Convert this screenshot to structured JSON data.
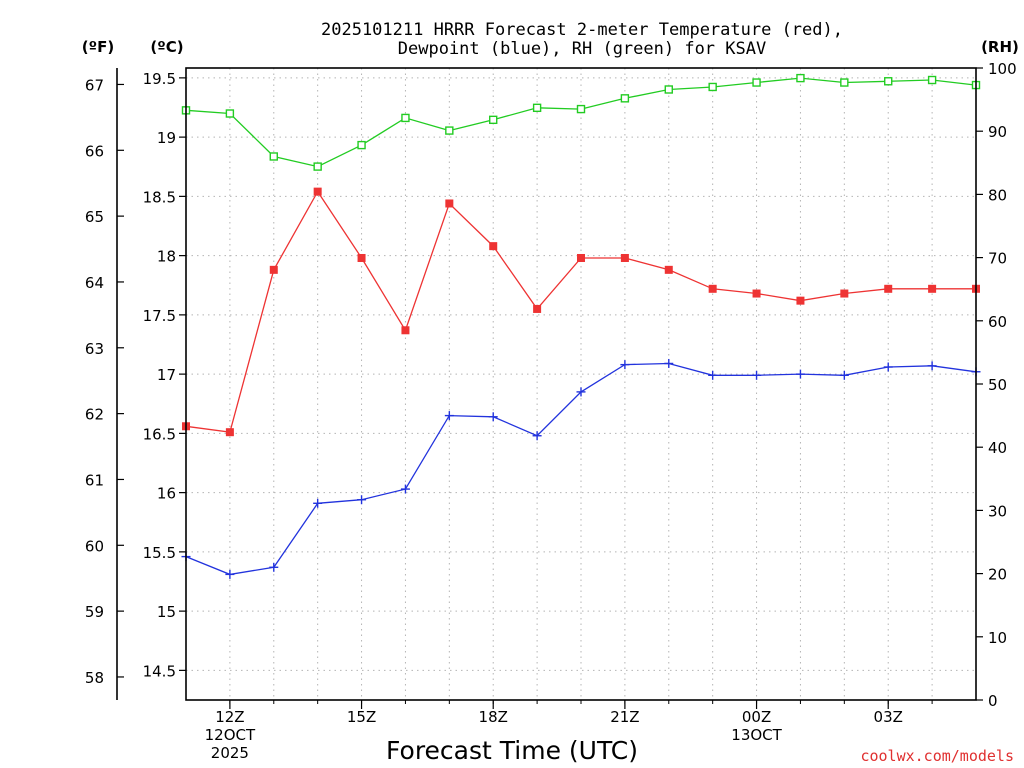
{
  "chart_data": {
    "type": "line",
    "title_lines": [
      "2025101211 HRRR Forecast 2-meter Temperature (red),",
      "Dewpoint (blue), RH (green) for KSAV"
    ],
    "unit_labels": {
      "fahrenheit": "(ºF)",
      "celsius": "(ºC)",
      "rh": "(RH)"
    },
    "xlabel": "Forecast Time (UTC)",
    "credit": "coolwx.com/models",
    "x_range": [
      -1,
      17
    ],
    "celsius_range": [
      14.25,
      19.5833
    ],
    "rh_range": [
      0,
      100
    ],
    "x_ticks": [
      {
        "x": 0,
        "lines": [
          "12Z",
          "12OCT",
          "2025"
        ]
      },
      {
        "x": 3,
        "lines": [
          "15Z"
        ]
      },
      {
        "x": 6,
        "lines": [
          "18Z"
        ]
      },
      {
        "x": 9,
        "lines": [
          "21Z"
        ]
      },
      {
        "x": 12,
        "lines": [
          "00Z",
          "13OCT"
        ]
      },
      {
        "x": 15,
        "lines": [
          "03Z"
        ]
      }
    ],
    "celsius_ticks": [
      14.5,
      15,
      15.5,
      16,
      16.5,
      17,
      17.5,
      18,
      18.5,
      19,
      19.5
    ],
    "celsius_tick_labels": [
      "14.5",
      "15",
      "15.5",
      "16",
      "16.5",
      "17",
      "17.5",
      "18",
      "18.5",
      "19",
      "19.5"
    ],
    "fahrenheit_ticks": [
      58,
      59,
      60,
      61,
      62,
      63,
      64,
      65,
      66,
      67
    ],
    "fahrenheit_tick_labels": [
      "58",
      "59",
      "60",
      "61",
      "62",
      "63",
      "64",
      "65",
      "66",
      "67"
    ],
    "rh_ticks": [
      0,
      10,
      20,
      30,
      40,
      50,
      60,
      70,
      80,
      90,
      100
    ],
    "rh_tick_labels": [
      "0",
      "10",
      "20",
      "30",
      "40",
      "50",
      "60",
      "70",
      "80",
      "90",
      "100"
    ],
    "x": [
      -1,
      0,
      1,
      2,
      3,
      4,
      5,
      6,
      7,
      8,
      9,
      10,
      11,
      12,
      13,
      14,
      15,
      16,
      17
    ],
    "series": [
      {
        "name": "2-meter Temperature",
        "axis": "celsius",
        "color": "#ee3333",
        "marker": "filled-square",
        "values": [
          16.56,
          16.51,
          17.88,
          18.54,
          17.98,
          17.37,
          18.44,
          18.08,
          17.55,
          17.98,
          17.98,
          17.88,
          17.72,
          17.68,
          17.62,
          17.68,
          17.72,
          17.72,
          17.72
        ]
      },
      {
        "name": "Dewpoint",
        "axis": "celsius",
        "color": "#2233dd",
        "marker": "plus",
        "values": [
          15.46,
          15.31,
          15.37,
          15.91,
          15.94,
          16.03,
          16.65,
          16.64,
          16.48,
          16.85,
          17.08,
          17.09,
          16.99,
          16.99,
          17.0,
          16.99,
          17.06,
          17.07,
          17.02
        ]
      },
      {
        "name": "RH",
        "axis": "rh",
        "color": "#22cc22",
        "marker": "open-square",
        "values": [
          93.3,
          92.8,
          86.0,
          84.4,
          87.8,
          92.1,
          90.1,
          91.8,
          93.7,
          93.5,
          95.2,
          96.6,
          97.0,
          97.7,
          98.4,
          97.7,
          97.9,
          98.1,
          97.3
        ]
      }
    ]
  }
}
